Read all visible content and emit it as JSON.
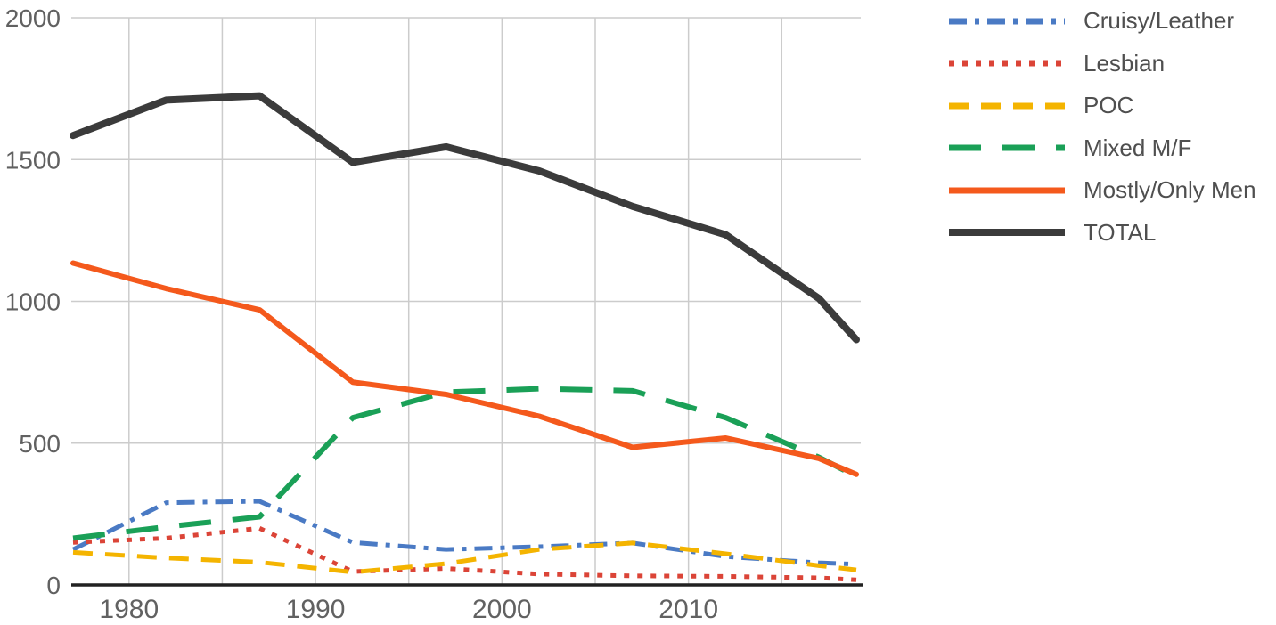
{
  "chart_data": {
    "type": "line",
    "title": "",
    "xlabel": "",
    "ylabel": "",
    "x": [
      1977,
      1982,
      1987,
      1992,
      1997,
      2002,
      2007,
      2012,
      2017,
      2019
    ],
    "xlim": [
      1977,
      2019
    ],
    "ylim": [
      0,
      2000
    ],
    "yticks": [
      0,
      500,
      1000,
      1500,
      2000
    ],
    "ytick_labels": [
      "0",
      "500",
      "1000",
      "1500",
      "2000"
    ],
    "xgrid_years": [
      1980,
      1985,
      1990,
      1995,
      2000,
      2005,
      2010,
      2015
    ],
    "xtick_labeled_years": [
      1980,
      1990,
      2000,
      2010
    ],
    "xtick_labels": [
      "1980",
      "1990",
      "2000",
      "2010"
    ],
    "grid": true,
    "legend_position": "top-right",
    "axis_label_color": "#616161",
    "gridline_color": "#cccccc",
    "axis_line_color": "#212121",
    "series": [
      {
        "name": "Cruisy/Leather",
        "color": "#4a7ac4",
        "style": "dashdot",
        "width": 5,
        "values": [
          125,
          290,
          295,
          150,
          125,
          135,
          148,
          100,
          78,
          73
        ]
      },
      {
        "name": "Lesbian",
        "color": "#db4437",
        "style": "dotted",
        "width": 5,
        "values": [
          150,
          165,
          200,
          47,
          58,
          38,
          32,
          30,
          25,
          18
        ]
      },
      {
        "name": "POC",
        "color": "#f4b400",
        "style": "dashed",
        "width": 5,
        "values": [
          115,
          95,
          80,
          45,
          75,
          125,
          148,
          110,
          68,
          53
        ]
      },
      {
        "name": "Mixed M/F",
        "color": "#1aa057",
        "style": "longdash",
        "width": 6,
        "values": [
          165,
          205,
          240,
          590,
          680,
          692,
          685,
          590,
          450,
          383
        ]
      },
      {
        "name": "Mostly/Only Men",
        "color": "#f4591c",
        "style": "solid",
        "width": 6,
        "values": [
          1135,
          1045,
          970,
          715,
          672,
          595,
          485,
          518,
          446,
          390
        ]
      },
      {
        "name": "TOTAL",
        "color": "#3b3b3b",
        "style": "solid",
        "width": 8,
        "values": [
          1585,
          1710,
          1725,
          1490,
          1545,
          1460,
          1335,
          1235,
          1010,
          865
        ]
      }
    ]
  }
}
